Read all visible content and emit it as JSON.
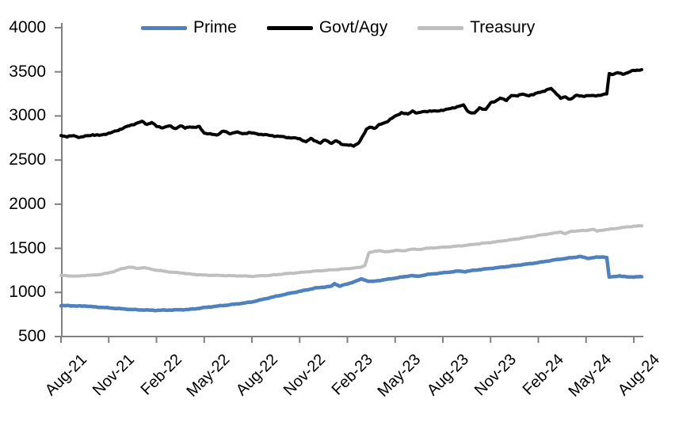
{
  "chart_data": {
    "type": "line",
    "title": "",
    "x_unit": "months since Aug-2021 (index 0 = Aug-21, 36 = Aug-24)",
    "x_tick_labels": [
      "Aug-21",
      "Nov-21",
      "Feb-22",
      "May-22",
      "Aug-22",
      "Nov-22",
      "Feb-23",
      "May-23",
      "Aug-23",
      "Nov-23",
      "Feb-24",
      "May-24",
      "Aug-24"
    ],
    "x_tick_month_indices": [
      0,
      3,
      6,
      9,
      12,
      15,
      18,
      21,
      24,
      27,
      30,
      33,
      36
    ],
    "ylim": [
      500,
      4000
    ],
    "y_ticks": [
      500,
      1000,
      1500,
      2000,
      2500,
      3000,
      3500,
      4000
    ],
    "grid": false,
    "legend_position": "top",
    "background_color": "#FFFFFF",
    "axis_color": "#808080",
    "text_color": "#000000",
    "series": [
      {
        "name": "Prime",
        "color": "#4F81BD",
        "line_width": 4.5,
        "noise_amp": 4,
        "points": [
          [
            0,
            848
          ],
          [
            0.5,
            851
          ],
          [
            1,
            844
          ],
          [
            1.5,
            847
          ],
          [
            2,
            837
          ],
          [
            2.5,
            831
          ],
          [
            3,
            825
          ],
          [
            3.5,
            818
          ],
          [
            4,
            812
          ],
          [
            4.5,
            806
          ],
          [
            5,
            802
          ],
          [
            5.5,
            799
          ],
          [
            6,
            797
          ],
          [
            6.5,
            799
          ],
          [
            7,
            801
          ],
          [
            7.5,
            804
          ],
          [
            8,
            806
          ],
          [
            8.5,
            816
          ],
          [
            9,
            828
          ],
          [
            9.5,
            838
          ],
          [
            10,
            848
          ],
          [
            10.5,
            858
          ],
          [
            11,
            868
          ],
          [
            11.5,
            879
          ],
          [
            12,
            892
          ],
          [
            12.5,
            913
          ],
          [
            13,
            935
          ],
          [
            13.5,
            955
          ],
          [
            14,
            975
          ],
          [
            14.5,
            994
          ],
          [
            15,
            1012
          ],
          [
            15.5,
            1031
          ],
          [
            16,
            1050
          ],
          [
            16.5,
            1060
          ],
          [
            17,
            1070
          ],
          [
            17.2,
            1100
          ],
          [
            17.5,
            1072
          ],
          [
            18,
            1095
          ],
          [
            18.4,
            1120
          ],
          [
            18.9,
            1152
          ],
          [
            19.3,
            1128
          ],
          [
            19.6,
            1124
          ],
          [
            20,
            1135
          ],
          [
            20.5,
            1148
          ],
          [
            21,
            1162
          ],
          [
            21.5,
            1176
          ],
          [
            22,
            1190
          ],
          [
            22.4,
            1182
          ],
          [
            23,
            1202
          ],
          [
            23.5,
            1212
          ],
          [
            24,
            1222
          ],
          [
            24.5,
            1232
          ],
          [
            25,
            1242
          ],
          [
            25.4,
            1236
          ],
          [
            26,
            1252
          ],
          [
            26.5,
            1262
          ],
          [
            27,
            1272
          ],
          [
            27.5,
            1282
          ],
          [
            28,
            1292
          ],
          [
            28.5,
            1303
          ],
          [
            29,
            1315
          ],
          [
            29.5,
            1326
          ],
          [
            30,
            1338
          ],
          [
            30.5,
            1353
          ],
          [
            31,
            1368
          ],
          [
            31.5,
            1380
          ],
          [
            32,
            1392
          ],
          [
            32.3,
            1398
          ],
          [
            32.6,
            1408
          ],
          [
            33.1,
            1386
          ],
          [
            33.6,
            1398
          ],
          [
            34.1,
            1402
          ],
          [
            34.3,
            1396
          ],
          [
            34.45,
            1172
          ],
          [
            34.8,
            1180
          ],
          [
            35.1,
            1188
          ],
          [
            35.5,
            1176
          ],
          [
            36,
            1176
          ],
          [
            36.5,
            1178
          ]
        ]
      },
      {
        "name": "Govt/Agy",
        "color": "#000000",
        "line_width": 4,
        "noise_amp": 8,
        "points": [
          [
            0,
            2780
          ],
          [
            0.4,
            2765
          ],
          [
            0.8,
            2776
          ],
          [
            1.2,
            2758
          ],
          [
            1.6,
            2772
          ],
          [
            2,
            2788
          ],
          [
            2.4,
            2778
          ],
          [
            2.8,
            2796
          ],
          [
            3.2,
            2812
          ],
          [
            3.6,
            2840
          ],
          [
            4,
            2868
          ],
          [
            4.4,
            2896
          ],
          [
            4.8,
            2920
          ],
          [
            5.1,
            2936
          ],
          [
            5.4,
            2906
          ],
          [
            5.7,
            2926
          ],
          [
            6,
            2882
          ],
          [
            6.4,
            2868
          ],
          [
            6.8,
            2886
          ],
          [
            7.2,
            2858
          ],
          [
            7.5,
            2888
          ],
          [
            7.8,
            2862
          ],
          [
            8.1,
            2880
          ],
          [
            8.4,
            2868
          ],
          [
            8.7,
            2878
          ],
          [
            9,
            2808
          ],
          [
            9.4,
            2792
          ],
          [
            9.8,
            2786
          ],
          [
            10.2,
            2828
          ],
          [
            10.6,
            2800
          ],
          [
            11,
            2818
          ],
          [
            11.4,
            2798
          ],
          [
            11.8,
            2812
          ],
          [
            12.2,
            2800
          ],
          [
            12.6,
            2792
          ],
          [
            13,
            2782
          ],
          [
            13.5,
            2772
          ],
          [
            14,
            2762
          ],
          [
            14.5,
            2752
          ],
          [
            15,
            2742
          ],
          [
            15.4,
            2706
          ],
          [
            15.7,
            2742
          ],
          [
            16,
            2718
          ],
          [
            16.3,
            2692
          ],
          [
            16.6,
            2728
          ],
          [
            17,
            2692
          ],
          [
            17.3,
            2718
          ],
          [
            17.6,
            2682
          ],
          [
            18,
            2672
          ],
          [
            18.4,
            2658
          ],
          [
            18.7,
            2696
          ],
          [
            19,
            2780
          ],
          [
            19.2,
            2846
          ],
          [
            19.45,
            2880
          ],
          [
            19.7,
            2858
          ],
          [
            20,
            2898
          ],
          [
            20.5,
            2938
          ],
          [
            21,
            2996
          ],
          [
            21.4,
            3038
          ],
          [
            21.8,
            3018
          ],
          [
            22.1,
            3058
          ],
          [
            22.4,
            3032
          ],
          [
            22.8,
            3048
          ],
          [
            23.2,
            3058
          ],
          [
            23.6,
            3052
          ],
          [
            24,
            3068
          ],
          [
            24.5,
            3082
          ],
          [
            25,
            3112
          ],
          [
            25.3,
            3120
          ],
          [
            25.6,
            3046
          ],
          [
            26,
            3032
          ],
          [
            26.3,
            3088
          ],
          [
            26.7,
            3076
          ],
          [
            27,
            3146
          ],
          [
            27.3,
            3166
          ],
          [
            27.6,
            3206
          ],
          [
            28,
            3172
          ],
          [
            28.3,
            3236
          ],
          [
            28.7,
            3226
          ],
          [
            29,
            3248
          ],
          [
            29.4,
            3232
          ],
          [
            29.7,
            3240
          ],
          [
            30,
            3268
          ],
          [
            30.4,
            3282
          ],
          [
            30.8,
            3312
          ],
          [
            31.1,
            3262
          ],
          [
            31.4,
            3198
          ],
          [
            31.7,
            3216
          ],
          [
            32,
            3188
          ],
          [
            32.4,
            3232
          ],
          [
            32.8,
            3226
          ],
          [
            33.2,
            3228
          ],
          [
            33.6,
            3232
          ],
          [
            34,
            3236
          ],
          [
            34.3,
            3250
          ],
          [
            34.45,
            3482
          ],
          [
            34.7,
            3472
          ],
          [
            35,
            3488
          ],
          [
            35.3,
            3476
          ],
          [
            35.6,
            3490
          ],
          [
            36,
            3515
          ],
          [
            36.5,
            3525
          ]
        ]
      },
      {
        "name": "Treasury",
        "color": "#BFBFBF",
        "line_width": 4,
        "noise_amp": 4,
        "points": [
          [
            0,
            1192
          ],
          [
            0.5,
            1188
          ],
          [
            1,
            1183
          ],
          [
            1.5,
            1192
          ],
          [
            2,
            1196
          ],
          [
            2.5,
            1204
          ],
          [
            3,
            1222
          ],
          [
            3.4,
            1242
          ],
          [
            3.8,
            1268
          ],
          [
            4.3,
            1288
          ],
          [
            4.8,
            1272
          ],
          [
            5.2,
            1282
          ],
          [
            5.6,
            1266
          ],
          [
            6,
            1252
          ],
          [
            6.5,
            1240
          ],
          [
            7,
            1228
          ],
          [
            7.5,
            1222
          ],
          [
            8,
            1210
          ],
          [
            8.5,
            1202
          ],
          [
            9,
            1196
          ],
          [
            9.5,
            1194
          ],
          [
            10,
            1192
          ],
          [
            10.5,
            1190
          ],
          [
            11,
            1188
          ],
          [
            11.5,
            1186
          ],
          [
            12,
            1182
          ],
          [
            12.5,
            1188
          ],
          [
            13,
            1192
          ],
          [
            13.5,
            1200
          ],
          [
            14,
            1210
          ],
          [
            14.5,
            1218
          ],
          [
            15,
            1225
          ],
          [
            15.5,
            1234
          ],
          [
            16,
            1242
          ],
          [
            16.5,
            1248
          ],
          [
            17,
            1255
          ],
          [
            17.5,
            1262
          ],
          [
            18,
            1270
          ],
          [
            18.8,
            1283
          ],
          [
            19.1,
            1305
          ],
          [
            19.35,
            1448
          ],
          [
            19.7,
            1465
          ],
          [
            20,
            1475
          ],
          [
            20.4,
            1458
          ],
          [
            20.8,
            1468
          ],
          [
            21,
            1478
          ],
          [
            21.5,
            1470
          ],
          [
            22,
            1490
          ],
          [
            22.5,
            1487
          ],
          [
            23,
            1500
          ],
          [
            23.5,
            1506
          ],
          [
            24,
            1512
          ],
          [
            24.5,
            1518
          ],
          [
            25,
            1526
          ],
          [
            25.5,
            1534
          ],
          [
            26,
            1546
          ],
          [
            26.5,
            1556
          ],
          [
            27,
            1566
          ],
          [
            27.5,
            1578
          ],
          [
            28,
            1590
          ],
          [
            28.5,
            1602
          ],
          [
            29,
            1616
          ],
          [
            29.5,
            1630
          ],
          [
            30,
            1646
          ],
          [
            30.5,
            1660
          ],
          [
            31,
            1672
          ],
          [
            31.4,
            1686
          ],
          [
            31.7,
            1664
          ],
          [
            32,
            1690
          ],
          [
            32.5,
            1698
          ],
          [
            33,
            1702
          ],
          [
            33.4,
            1716
          ],
          [
            33.7,
            1694
          ],
          [
            34,
            1706
          ],
          [
            34.5,
            1716
          ],
          [
            35,
            1728
          ],
          [
            35.5,
            1740
          ],
          [
            36,
            1750
          ],
          [
            36.5,
            1754
          ]
        ]
      }
    ]
  }
}
